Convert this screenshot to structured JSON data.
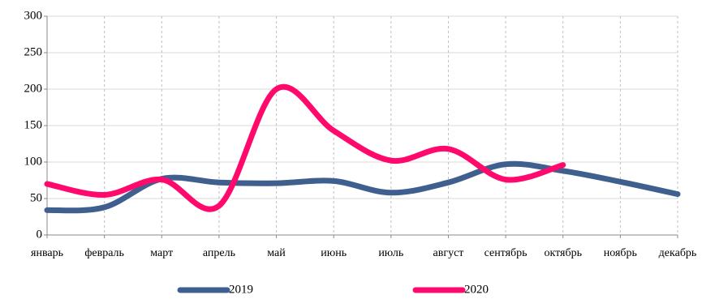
{
  "chart_data": {
    "type": "line",
    "categories": [
      "январь",
      "февраль",
      "март",
      "апрель",
      "май",
      "июнь",
      "июль",
      "август",
      "сентябрь",
      "октябрь",
      "ноябрь",
      "декабрь"
    ],
    "series": [
      {
        "name": "2019",
        "color": "#3f5f8f",
        "values": [
          34,
          38,
          77,
          72,
          71,
          74,
          58,
          72,
          97,
          88,
          73,
          56
        ]
      },
      {
        "name": "2020",
        "color": "#ff0a6c",
        "values": [
          70,
          55,
          76,
          40,
          200,
          143,
          102,
          118,
          76,
          96,
          null,
          null
        ]
      }
    ],
    "ylim": [
      0,
      300
    ],
    "yticks": [
      0,
      50,
      100,
      150,
      200,
      250,
      300
    ],
    "grid": true,
    "smooth": true,
    "legend": "bottom"
  }
}
